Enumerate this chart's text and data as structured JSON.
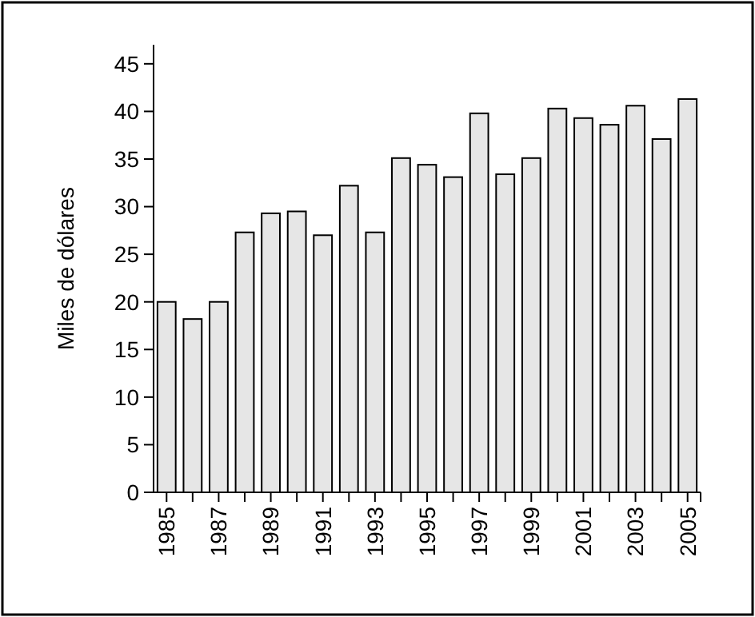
{
  "chart_data": {
    "type": "bar",
    "ylabel": "Miles de dólares",
    "categories": [
      "1985",
      null,
      "1987",
      null,
      "1989",
      null,
      "1991",
      null,
      "1993",
      null,
      "1995",
      null,
      "1997",
      null,
      "1999",
      null,
      "2001",
      null,
      "2003",
      null,
      "2005"
    ],
    "values": [
      20,
      18.2,
      20,
      27.3,
      29.3,
      29.5,
      27,
      32.2,
      27.3,
      35.1,
      34.4,
      33.1,
      39.8,
      33.4,
      35.1,
      40.3,
      39.3,
      38.6,
      40.6,
      37.1,
      41.3
    ],
    "color": "#e6e6e6",
    "ylim": [
      0,
      47
    ],
    "yticks": [
      0,
      5,
      10,
      15,
      20,
      25,
      30,
      35,
      40,
      45
    ],
    "grid": false
  }
}
